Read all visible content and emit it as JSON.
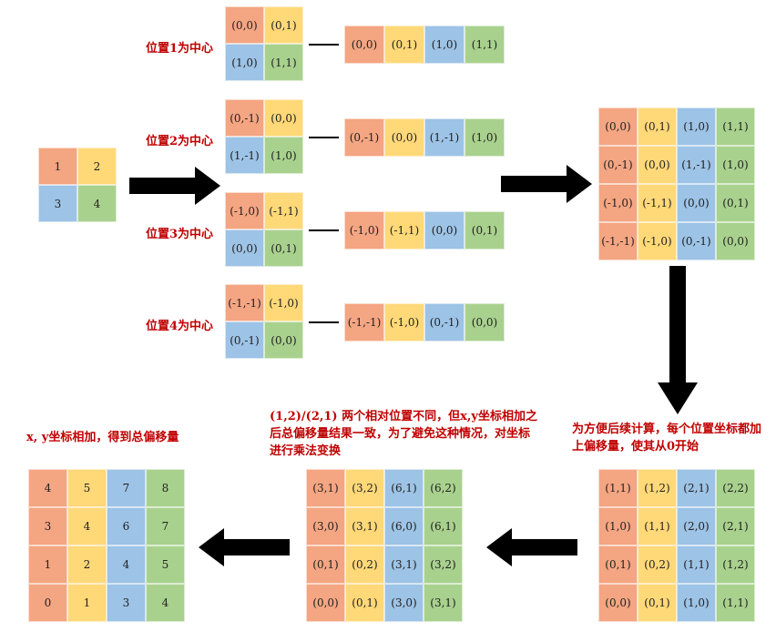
{
  "colors": {
    "red": "#f4a582",
    "yellow": "#ffd878",
    "blue": "#9dc3e6",
    "green": "#a9d18e",
    "label": "#c00000"
  },
  "source": {
    "cells": [
      "1",
      "2",
      "3",
      "4"
    ]
  },
  "positions": [
    {
      "label": "位置1为中心",
      "square": [
        "(0,0)",
        "(0,1)",
        "(1,0)",
        "(1,1)"
      ],
      "row": [
        "(0,0)",
        "(0,1)",
        "(1,0)",
        "(1,1)"
      ]
    },
    {
      "label": "位置2为中心",
      "square": [
        "(0,-1)",
        "(0,0)",
        "(1,-1)",
        "(1,0)"
      ],
      "row": [
        "(0,-1)",
        "(0,0)",
        "(1,-1)",
        "(1,0)"
      ]
    },
    {
      "label": "位置3为中心",
      "square": [
        "(-1,0)",
        "(-1,1)",
        "(0,0)",
        "(0,1)"
      ],
      "row": [
        "(-1,0)",
        "(-1,1)",
        "(0,0)",
        "(0,1)"
      ]
    },
    {
      "label": "位置4为中心",
      "square": [
        "(-1,-1)",
        "(-1,0)",
        "(0,-1)",
        "(0,0)"
      ],
      "row": [
        "(-1,-1)",
        "(-1,0)",
        "(0,-1)",
        "(0,0)"
      ]
    }
  ],
  "relative_matrix": [
    [
      "(0,0)",
      "(0,1)",
      "(1,0)",
      "(1,1)"
    ],
    [
      "(0,-1)",
      "(0,0)",
      "(1,-1)",
      "(1,0)"
    ],
    [
      "(-1,0)",
      "(-1,1)",
      "(0,0)",
      "(0,1)"
    ],
    [
      "(-1,-1)",
      "(-1,0)",
      "(0,-1)",
      "(0,0)"
    ]
  ],
  "offset_note": "为方便后续计算，每个位置坐标都加上偏移量，使其从0开始",
  "offset_matrix": [
    [
      "(1,1)",
      "(1,2)",
      "(2,1)",
      "(2,2)"
    ],
    [
      "(1,0)",
      "(1,1)",
      "(2,0)",
      "(2,1)"
    ],
    [
      "(0,1)",
      "(0,2)",
      "(1,1)",
      "(1,2)"
    ],
    [
      "(0,0)",
      "(0,1)",
      "(1,0)",
      "(1,1)"
    ]
  ],
  "multiply_note": "(1,2)/(2,1) 两个相对位置不同，但x,y坐标相加之后总偏移量结果一致，为了避免这种情况，对坐标进行乘法变换",
  "multiply_matrix": [
    [
      "(3,1)",
      "(3,2)",
      "(6,1)",
      "(6,2)"
    ],
    [
      "(3,0)",
      "(3,1)",
      "(6,0)",
      "(6,1)"
    ],
    [
      "(0,1)",
      "(0,2)",
      "(3,1)",
      "(3,2)"
    ],
    [
      "(0,0)",
      "(0,1)",
      "(3,0)",
      "(3,1)"
    ]
  ],
  "sum_note": "x, y坐标相加，得到总偏移量",
  "sum_matrix": [
    [
      "4",
      "5",
      "7",
      "8"
    ],
    [
      "3",
      "4",
      "6",
      "7"
    ],
    [
      "1",
      "2",
      "4",
      "5"
    ],
    [
      "0",
      "1",
      "3",
      "4"
    ]
  ]
}
